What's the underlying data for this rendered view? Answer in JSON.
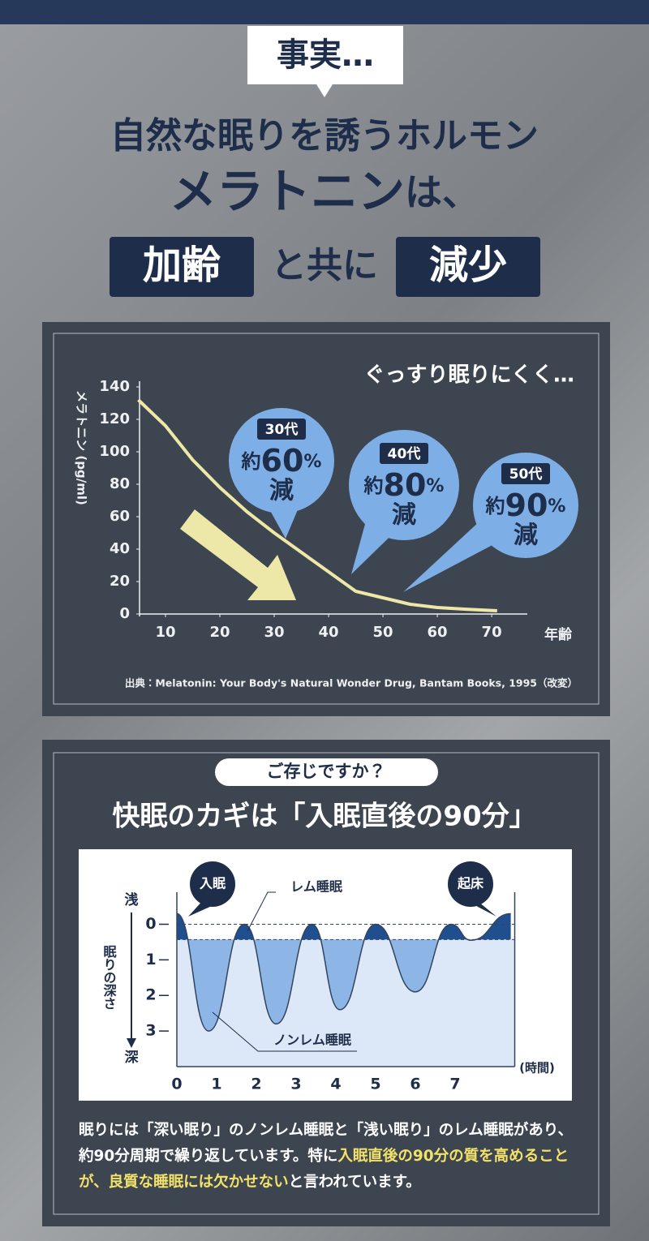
{
  "header": {
    "tag": "事実…",
    "line1": "自然な眠りを誘うホルモン",
    "line2": [
      "メラトニン",
      "は、"
    ],
    "line3": [
      "加齢",
      "と共に",
      "減少"
    ]
  },
  "chart_data": [
    {
      "type": "line",
      "title": "ぐっすり眠りにくく…",
      "y_label": "メラトニン (pg/ml)",
      "x_label": "年齢",
      "x": [
        5,
        10,
        15,
        20,
        25,
        30,
        35,
        40,
        45,
        50,
        55,
        60,
        65,
        71
      ],
      "series": [
        {
          "color": "#eee8a8",
          "values": [
            132,
            116,
            95,
            78,
            63,
            50,
            38,
            26,
            14,
            10,
            6,
            4,
            3,
            2
          ]
        }
      ],
      "xlim": [
        5,
        77
      ],
      "ylim": [
        0,
        140
      ],
      "xticks": [
        10,
        20,
        30,
        40,
        50,
        60,
        70
      ],
      "yticks": [
        0,
        20,
        40,
        60,
        80,
        100,
        120,
        140
      ],
      "callouts": [
        {
          "label": "30代",
          "prefix": "約",
          "value": 60,
          "unit": "%",
          "suffix": "減",
          "color": "#7eaee6"
        },
        {
          "label": "40代",
          "prefix": "約",
          "value": 80,
          "unit": "%",
          "suffix": "減",
          "color": "#7eaee6"
        },
        {
          "label": "50代",
          "prefix": "約",
          "value": 90,
          "unit": "%",
          "suffix": "減",
          "color": "#7eaee6"
        }
      ],
      "source": "出典：Melatonin: Your Body's Natural Wonder Drug, Bantam Books, 1995（改変）"
    },
    {
      "type": "area",
      "badge": "ご存じですか？",
      "title": "快眠のカギは「入眠直後の90分」",
      "y_label": "眠りの深さ",
      "y_top_label": "浅",
      "y_bottom_label": "深",
      "x_label": "(時間)",
      "x": [
        0,
        0.8,
        1.7,
        2.5,
        3.4,
        4.1,
        5.0,
        6.0,
        6.9,
        7.4,
        8.4
      ],
      "series": [
        {
          "color": "#1f4f8f",
          "values": [
            -0.3,
            3.0,
            0,
            2.8,
            0,
            2.4,
            0,
            1.9,
            0,
            0.45,
            -0.3
          ]
        }
      ],
      "xlim": [
        0,
        8.5
      ],
      "ylim": [
        -0.9,
        4
      ],
      "y_inverted": true,
      "xticks": [
        0,
        1,
        2,
        3,
        4,
        5,
        6,
        7
      ],
      "yticks": [
        0,
        1,
        2,
        3
      ],
      "reference_lines": [
        0,
        0.43
      ],
      "annotations": {
        "sleep_onset": "入眠",
        "wake": "起床",
        "rem": "レム睡眠",
        "non_rem": "ノンレム睡眠"
      }
    }
  ],
  "footer": {
    "segments": [
      {
        "text": "眠りには「深い眠り」のノンレム睡眠と「浅い眠り」のレム睡眠があり、約90分周期で繰り返しています。特に",
        "highlight": false
      },
      {
        "text": "入眠直後の90分の質を高めることが、良質な睡眠には欠かせない",
        "highlight": true
      },
      {
        "text": "と言われています。",
        "highlight": false
      }
    ]
  }
}
